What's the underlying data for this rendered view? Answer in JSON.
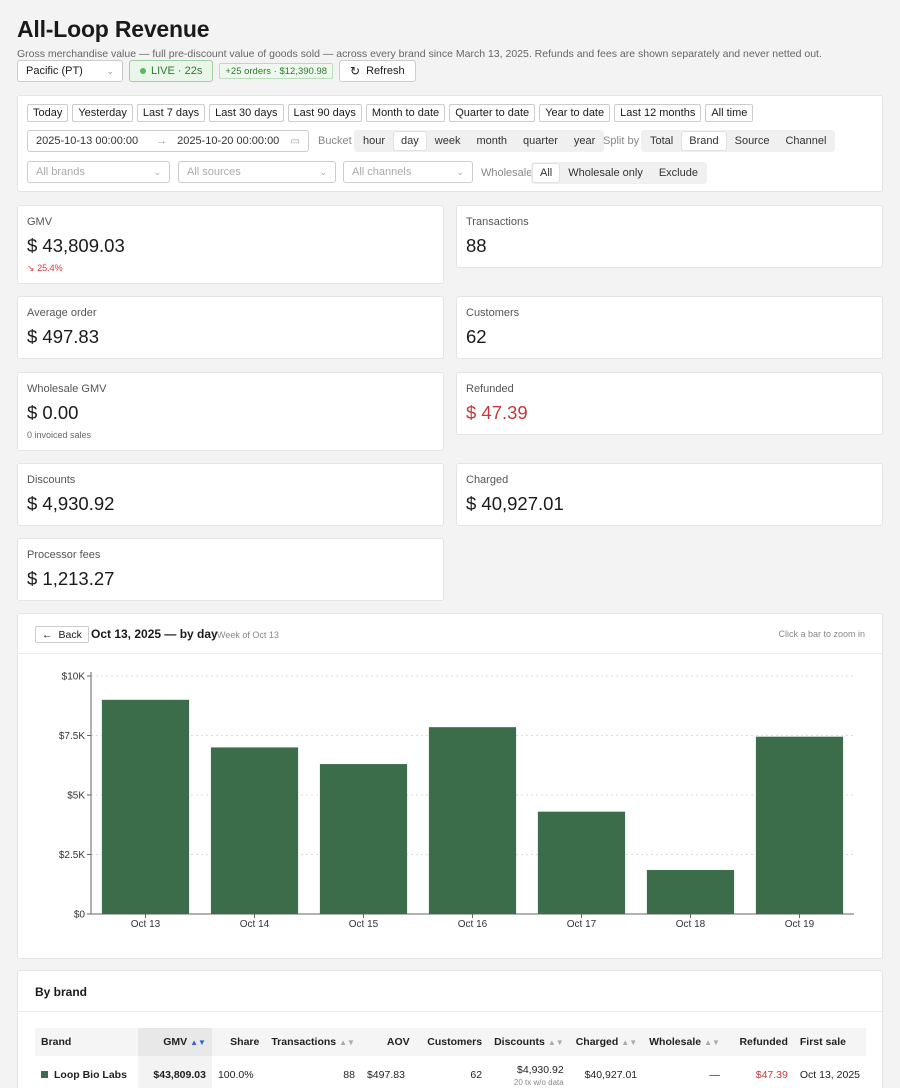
{
  "header": {
    "title": "All-Loop Revenue",
    "subtitle": "Gross merchandise value — full pre-discount value of goods sold — across every brand since March 13, 2025. Refunds and fees are shown separately and never netted out."
  },
  "toolbar": {
    "timezone": "Pacific (PT)",
    "live_label": "LIVE · 22s",
    "orders_badge": "+25 orders · $12,390.98",
    "refresh_label": "Refresh"
  },
  "filters": {
    "presets": [
      "Today",
      "Yesterday",
      "Last 7 days",
      "Last 30 days",
      "Last 90 days",
      "Month to date",
      "Quarter to date",
      "Year to date",
      "Last 12 months",
      "All time"
    ],
    "date_from": "2025-10-13 00:00:00",
    "date_arrow": "→",
    "date_to": "2025-10-20 00:00:00",
    "bucket_label": "Bucket",
    "buckets": [
      "hour",
      "day",
      "week",
      "month",
      "quarter",
      "year"
    ],
    "bucket_selected": "day",
    "split_label": "Split by",
    "splits": [
      "Total",
      "Brand",
      "Source",
      "Channel"
    ],
    "split_selected": "Brand",
    "brands_placeholder": "All brands",
    "sources_placeholder": "All sources",
    "channels_placeholder": "All channels",
    "wholesale_label": "Wholesale",
    "wholesale_options": [
      "All",
      "Wholesale only",
      "Exclude"
    ],
    "wholesale_selected": "All"
  },
  "kpis": {
    "gmv": {
      "label": "GMV",
      "value": "$ 43,809.03",
      "delta": "25.4%"
    },
    "transactions": {
      "label": "Transactions",
      "value": "88"
    },
    "aov": {
      "label": "Average order",
      "value": "$ 497.83"
    },
    "customers": {
      "label": "Customers",
      "value": "62"
    },
    "wholesale": {
      "label": "Wholesale GMV",
      "value": "$ 0.00",
      "note": "0 invoiced sales"
    },
    "refunded": {
      "label": "Refunded",
      "value": "$ 47.39"
    },
    "discounts": {
      "label": "Discounts",
      "value": "$ 4,930.92"
    },
    "charged": {
      "label": "Charged",
      "value": "$ 40,927.01"
    },
    "fees": {
      "label": "Processor fees",
      "value": "$ 1,213.27"
    }
  },
  "chart_panel": {
    "back_label": "Back",
    "title": "Oct 13, 2025 — by day",
    "subtitle": "Week of Oct 13",
    "hint": "Click a bar to zoom in"
  },
  "chart_data": {
    "type": "bar",
    "categories": [
      "Oct 13",
      "Oct 14",
      "Oct 15",
      "Oct 16",
      "Oct 17",
      "Oct 18",
      "Oct 19"
    ],
    "values": [
      9000,
      7000,
      6300,
      7850,
      4300,
      1850,
      7450
    ],
    "ylim": [
      0,
      10000
    ],
    "yticks": [
      0,
      2500,
      5000,
      7500,
      10000
    ],
    "ytick_labels": [
      "$0",
      "$2.5K",
      "$5K",
      "$7.5K",
      "$10K"
    ],
    "bar_color": "#3c6d4b",
    "grid": true
  },
  "brand_table": {
    "title": "By brand",
    "columns": [
      "Brand",
      "GMV",
      "Share",
      "Transactions",
      "AOV",
      "Customers",
      "Discounts",
      "Charged",
      "Wholesale",
      "Refunded",
      "First sale"
    ],
    "rows": [
      {
        "brand": "Loop Bio Labs",
        "gmv": "$43,809.03",
        "share": "100.0%",
        "transactions": "88",
        "aov": "$497.83",
        "customers": "62",
        "discounts": "$4,930.92",
        "discounts_note": "20 tx w/o data",
        "charged": "$40,927.01",
        "wholesale": "—",
        "refunded": "$47.39",
        "first_sale": "Oct 13, 2025"
      }
    ]
  }
}
